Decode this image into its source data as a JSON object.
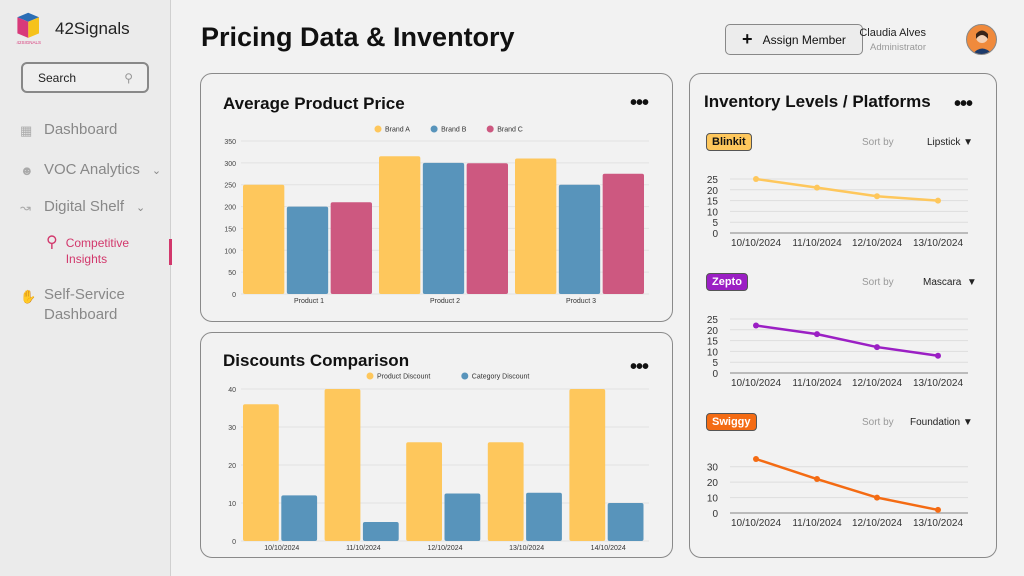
{
  "app": {
    "name": "42Signals",
    "logo_text": "42SIGNALS"
  },
  "search": {
    "placeholder": "Search"
  },
  "sidebar": {
    "items": [
      {
        "label": "Dashboard",
        "icon": "grid-icon"
      },
      {
        "label": "VOC Analytics",
        "icon": "users-icon"
      },
      {
        "label": "Digital Shelf",
        "icon": "chart-icon"
      },
      {
        "label": "Competitive Insights",
        "icon": "insights-icon",
        "active": true
      },
      {
        "label": "Self-Service Dashboard",
        "icon": "hand-icon"
      }
    ]
  },
  "header": {
    "title": "Pricing Data & Inventory",
    "assign_label": "Assign Member",
    "user_name": "Claudia Alves",
    "user_role": "Administrator"
  },
  "colors": {
    "brand_a": "#fec75c",
    "brand_b": "#5894bb",
    "brand_c": "#cd5880",
    "accent": "#d2386c"
  },
  "chart_data": [
    {
      "type": "bar",
      "title": "Average Product Price",
      "categories": [
        "Product 1",
        "Product 2",
        "Product 3"
      ],
      "series": [
        {
          "name": "Brand A",
          "values": [
            250,
            315,
            310
          ],
          "color": "#fec75c"
        },
        {
          "name": "Brand B",
          "values": [
            200,
            300,
            250
          ],
          "color": "#5894bb"
        },
        {
          "name": "Brand C",
          "values": [
            210,
            299,
            275
          ],
          "color": "#cd5880"
        }
      ],
      "ylim": [
        0,
        350
      ],
      "yticks": [
        0,
        50,
        100,
        150,
        200,
        250,
        300,
        350
      ],
      "legend": "top",
      "grid": true
    },
    {
      "type": "bar",
      "title": "Discounts Comparison",
      "categories": [
        "10/10/2024",
        "11/10/2024",
        "12/10/2024",
        "13/10/2024",
        "14/10/2024"
      ],
      "series": [
        {
          "name": "Product Discount",
          "values": [
            36,
            40,
            26,
            26,
            40
          ],
          "color": "#fec75c"
        },
        {
          "name": "Category Discount",
          "values": [
            12,
            5,
            12.5,
            12.7,
            10
          ],
          "color": "#5894bb"
        }
      ],
      "ylim": [
        0,
        40
      ],
      "yticks": [
        0,
        10,
        20,
        30,
        40
      ],
      "legend": "top",
      "grid": true
    },
    {
      "type": "line",
      "platform": "Blinkit",
      "sort_label": "Sort by",
      "sort_value": "Lipstick",
      "categories": [
        "10/10/2024",
        "11/10/2024",
        "12/10/2024",
        "13/10/2024"
      ],
      "values": [
        25,
        21,
        17,
        15
      ],
      "ylim": [
        0,
        25
      ],
      "yticks": [
        0,
        5,
        10,
        15,
        20,
        25
      ],
      "color": "#fec75c",
      "badge_color": "#fec75c"
    },
    {
      "type": "line",
      "platform": "Zepto",
      "sort_label": "Sort by",
      "sort_value": "Mascara",
      "categories": [
        "10/10/2024",
        "11/10/2024",
        "12/10/2024",
        "13/10/2024"
      ],
      "values": [
        22,
        18,
        12,
        8
      ],
      "ylim": [
        0,
        25
      ],
      "yticks": [
        0,
        5,
        10,
        15,
        20,
        25
      ],
      "color": "#9b1fc4",
      "badge_color": "#9b1fc4"
    },
    {
      "type": "line",
      "platform": "Swiggy",
      "sort_label": "Sort by",
      "sort_value": "Foundation",
      "categories": [
        "10/10/2024",
        "11/10/2024",
        "12/10/2024",
        "13/10/2024"
      ],
      "values": [
        35,
        22,
        10,
        2
      ],
      "ylim": [
        0,
        35
      ],
      "yticks": [
        0,
        10,
        20,
        30
      ],
      "color": "#f46b13",
      "badge_color": "#f46b13"
    }
  ],
  "inventory": {
    "title": "Inventory Levels / Platforms"
  }
}
